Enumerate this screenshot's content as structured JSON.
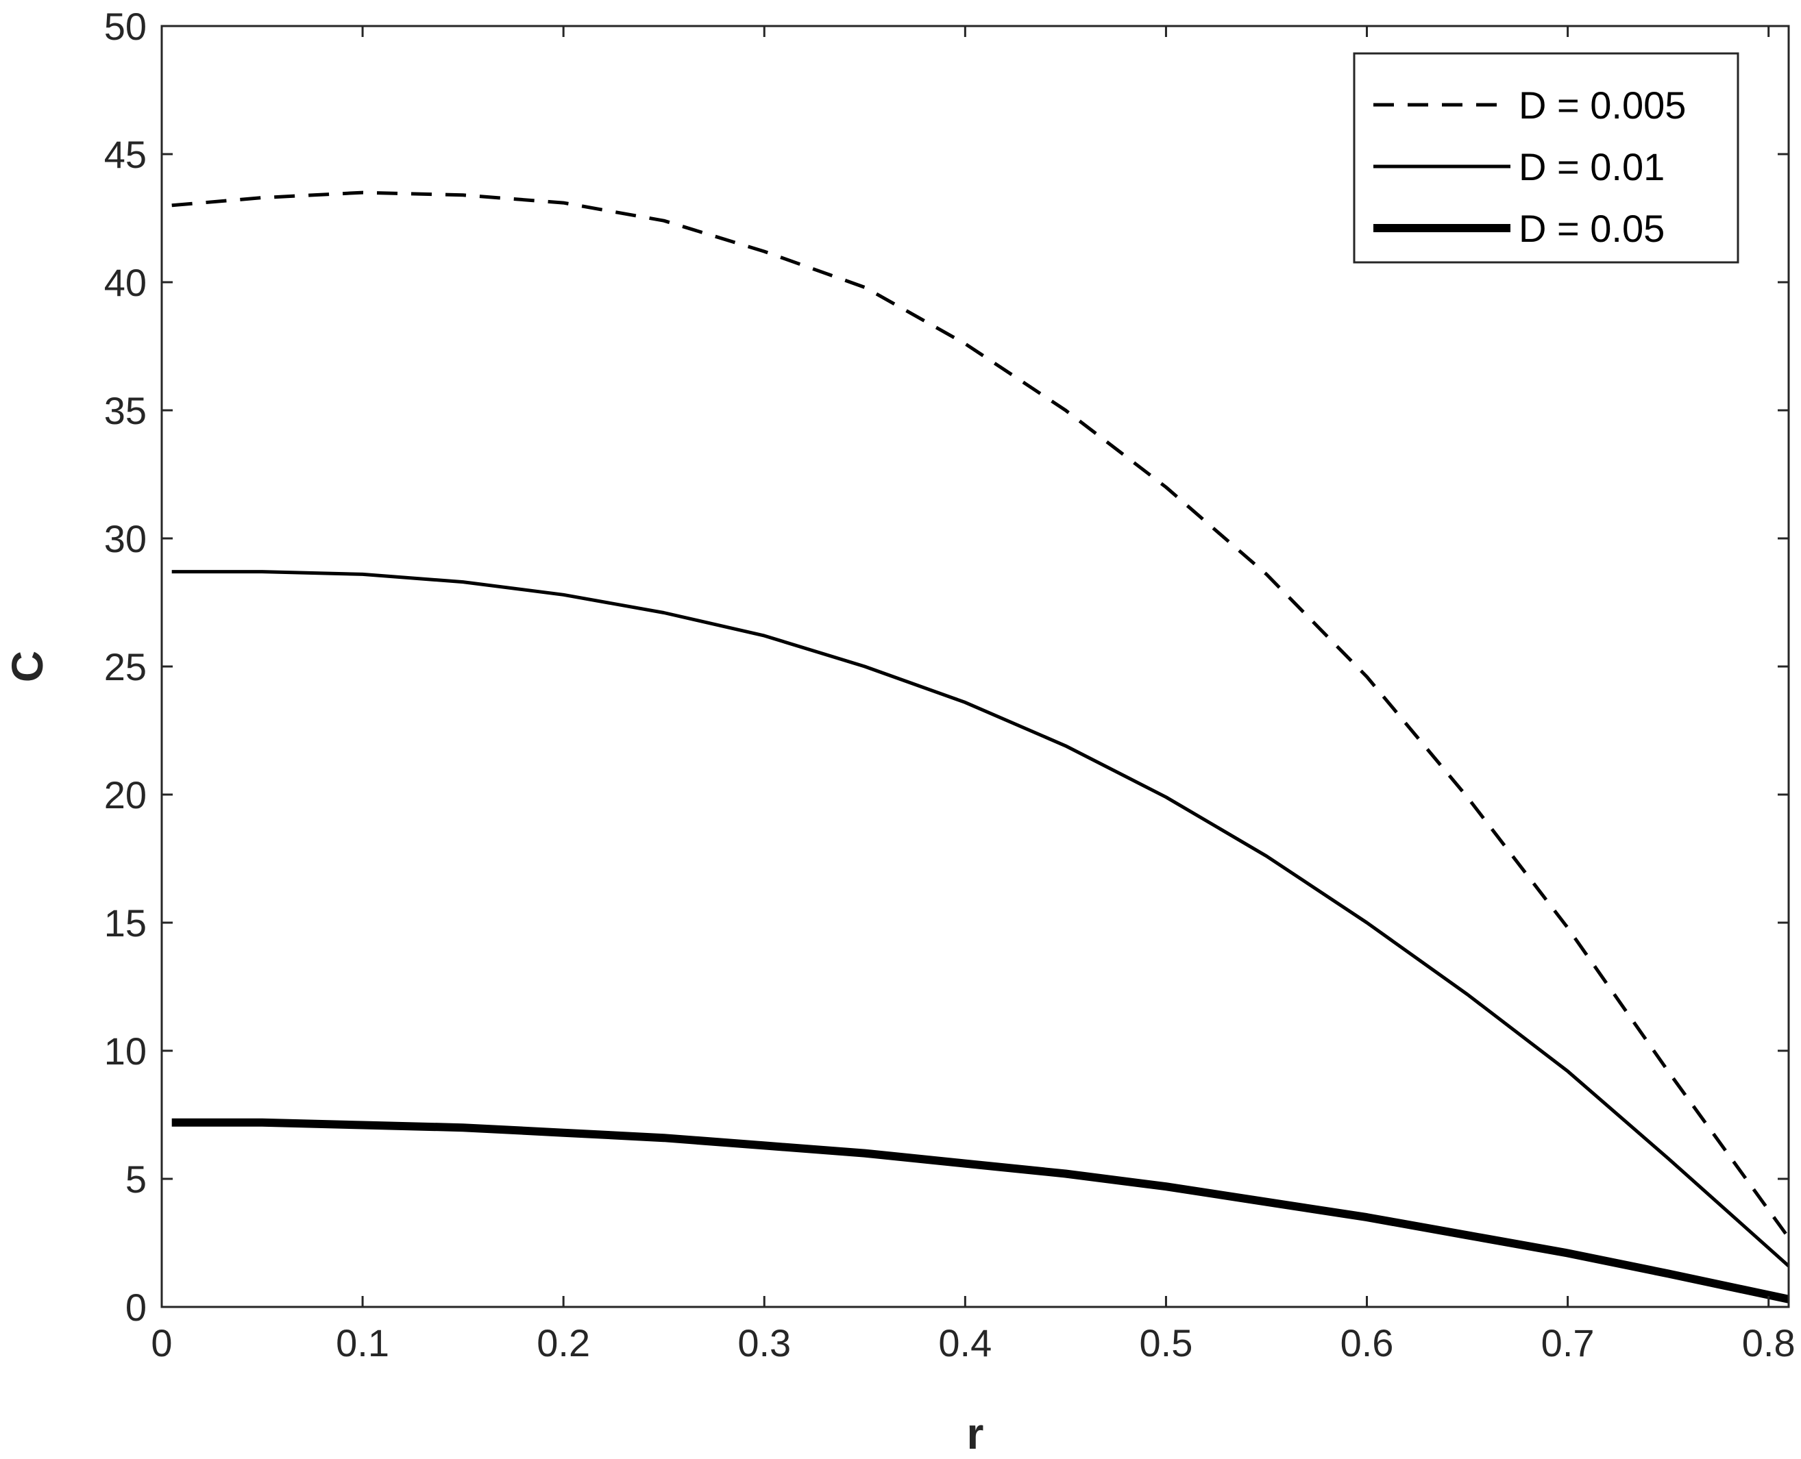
{
  "chart_data": {
    "type": "line",
    "title": "",
    "xlabel": "r",
    "ylabel": "C",
    "xlim": [
      0,
      0.81
    ],
    "ylim": [
      0,
      50
    ],
    "xticks": [
      0,
      0.1,
      0.2,
      0.3,
      0.4,
      0.5,
      0.6,
      0.7,
      0.8
    ],
    "xtick_labels": [
      "0",
      "0.1",
      "0.2",
      "0.3",
      "0.4",
      "0.5",
      "0.6",
      "0.7",
      "0.8"
    ],
    "yticks": [
      0,
      5,
      10,
      15,
      20,
      25,
      30,
      35,
      40,
      45,
      50
    ],
    "ytick_labels": [
      "0",
      "5",
      "10",
      "15",
      "20",
      "25",
      "30",
      "35",
      "40",
      "45",
      "50"
    ],
    "grid": false,
    "legend_position": "top-right",
    "series": [
      {
        "name": "D = 0.005",
        "style": "dashed",
        "color": "#000000",
        "x": [
          0.005,
          0.05,
          0.1,
          0.15,
          0.2,
          0.25,
          0.3,
          0.35,
          0.4,
          0.45,
          0.5,
          0.55,
          0.6,
          0.65,
          0.7,
          0.75,
          0.81
        ],
        "y": [
          43.0,
          43.3,
          43.5,
          43.4,
          43.1,
          42.4,
          41.2,
          39.8,
          37.6,
          35.0,
          32.0,
          28.6,
          24.6,
          19.9,
          14.8,
          9.2,
          2.7
        ]
      },
      {
        "name": "D = 0.01",
        "style": "solid",
        "color": "#000000",
        "x": [
          0.005,
          0.05,
          0.1,
          0.15,
          0.2,
          0.25,
          0.3,
          0.35,
          0.4,
          0.45,
          0.5,
          0.55,
          0.6,
          0.65,
          0.7,
          0.75,
          0.81
        ],
        "y": [
          28.7,
          28.7,
          28.6,
          28.3,
          27.8,
          27.1,
          26.2,
          25.0,
          23.6,
          21.9,
          19.9,
          17.6,
          15.0,
          12.2,
          9.2,
          5.8,
          1.6
        ]
      },
      {
        "name": "D = 0.05",
        "style": "thick",
        "color": "#000000",
        "x": [
          0.005,
          0.05,
          0.1,
          0.15,
          0.2,
          0.25,
          0.3,
          0.35,
          0.4,
          0.45,
          0.5,
          0.55,
          0.6,
          0.65,
          0.7,
          0.75,
          0.81
        ],
        "y": [
          7.2,
          7.2,
          7.1,
          7.0,
          6.8,
          6.6,
          6.3,
          6.0,
          5.6,
          5.2,
          4.7,
          4.1,
          3.5,
          2.8,
          2.1,
          1.3,
          0.3
        ]
      }
    ]
  }
}
